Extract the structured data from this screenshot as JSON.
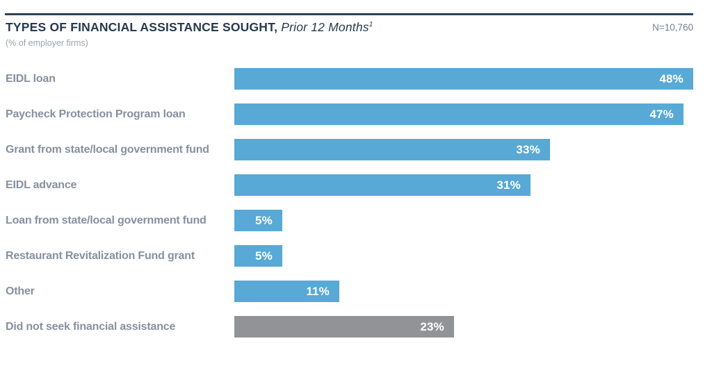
{
  "header": {
    "title_bold": "TYPES OF FINANCIAL ASSISTANCE SOUGHT,",
    "title_italic": " Prior 12 Months",
    "footnote_marker": "1",
    "subtitle": "(% of employer firms)",
    "sample_size": "N=10,760"
  },
  "colors": {
    "bar_blue": "#58a9d5",
    "bar_gray": "#929397",
    "rule_navy": "#2e4154",
    "title_navy": "#27394e",
    "category_label_gray": "#86909f",
    "subtitle_gray": "#9aa3ad",
    "value_label_white": "#ffffff"
  },
  "chart_data": {
    "type": "bar",
    "orientation": "horizontal",
    "title": "TYPES OF FINANCIAL ASSISTANCE SOUGHT, Prior 12 Months¹",
    "subtitle": "(% of employer firms)",
    "annotations": [
      "N=10,760"
    ],
    "unit": "%",
    "xlim": [
      0,
      50
    ],
    "grid": false,
    "legend": false,
    "categories": [
      "EIDL loan",
      "Paycheck Protection Program loan",
      "Grant from state/local government fund",
      "EIDL advance",
      "Loan from state/local government fund",
      "Restaurant Revitalization Fund grant",
      "Other",
      "Did not seek financial assistance"
    ],
    "values": [
      48,
      47,
      33,
      31,
      5,
      5,
      11,
      23
    ],
    "value_labels": [
      "48%",
      "47%",
      "33%",
      "31%",
      "5%",
      "5%",
      "11%",
      "23%"
    ],
    "bar_colors": [
      "#58a9d5",
      "#58a9d5",
      "#58a9d5",
      "#58a9d5",
      "#58a9d5",
      "#58a9d5",
      "#58a9d5",
      "#929397"
    ]
  }
}
